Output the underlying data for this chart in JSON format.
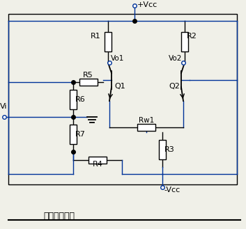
{
  "title": "差分放大電路",
  "vcc_label": "+Vcc",
  "neg_vcc_label": "-Vcc",
  "vi_label": "Vi",
  "vo1_label": "Vo1",
  "vo2_label": "Vo2",
  "r1_label": "R1",
  "r2_label": "R2",
  "r3_label": "R3",
  "r4_label": "R4",
  "r5_label": "R5",
  "r6_label": "R6",
  "r7_label": "R7",
  "rw1_label": "Rw1",
  "q1_label": "Q1",
  "q2_label": "Q2",
  "line_color": "#003399",
  "background": "#f0f0e8",
  "border_color": "#000000",
  "resistor_color": "#000000",
  "text_color": "#000000",
  "figsize": [
    3.53,
    3.29
  ],
  "dpi": 100
}
